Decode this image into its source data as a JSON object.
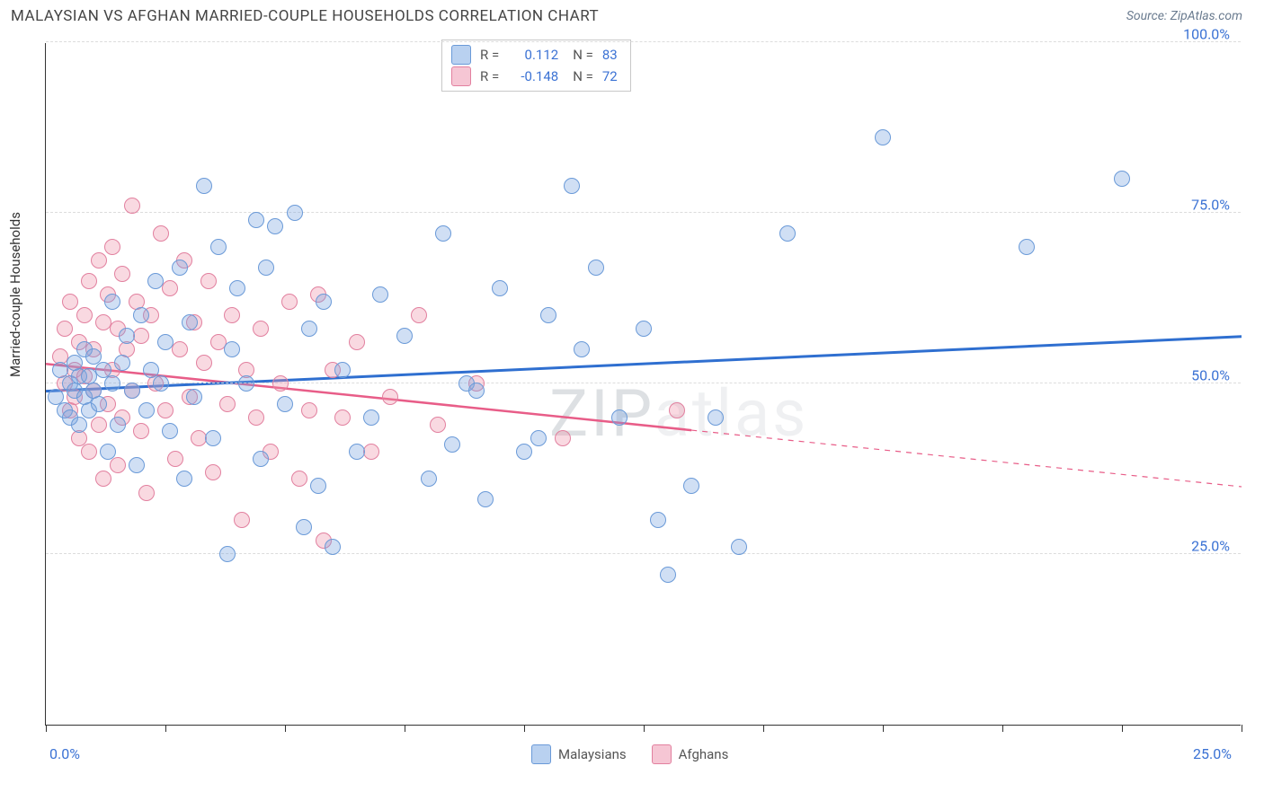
{
  "header": {
    "title": "MALAYSIAN VS AFGHAN MARRIED-COUPLE HOUSEHOLDS CORRELATION CHART",
    "source_prefix": "Source: ",
    "source_name": "ZipAtlas.com"
  },
  "chart": {
    "type": "scatter",
    "y_axis_label": "Married-couple Households",
    "background_color": "#ffffff",
    "grid_color": "#dcdcdc",
    "axis_color": "#333333",
    "xlim": [
      0,
      25
    ],
    "ylim": [
      0,
      100
    ],
    "x_ticks": [
      0,
      2.5,
      5,
      7.5,
      10,
      12.5,
      15,
      17.5,
      20,
      22.5,
      25
    ],
    "x_tick_labels": {
      "0": "0.0%",
      "25": "25.0%"
    },
    "y_gridlines": [
      25,
      50,
      75,
      100
    ],
    "y_tick_labels": {
      "25": "25.0%",
      "50": "50.0%",
      "75": "75.0%",
      "100": "100.0%"
    },
    "tick_label_color": "#3b72d4",
    "point_radius": 9,
    "point_stroke_width": 1.5,
    "watermark": {
      "dark": "ZIP",
      "light": "atlas",
      "fontsize": 72
    }
  },
  "series": {
    "malaysians": {
      "label": "Malaysians",
      "fill": "rgba(120,163,224,0.35)",
      "stroke": "#6a9ad8",
      "swatch_fill": "#b9d1f0",
      "swatch_stroke": "#6a9ad8",
      "trend_color": "#2f6fd0",
      "trend_width": 3,
      "R": "0.112",
      "N": "83",
      "trend": {
        "x1": 0,
        "y1": 49,
        "x2": 25,
        "y2": 57,
        "solid_to_x": 25
      },
      "points": [
        [
          0.2,
          48
        ],
        [
          0.3,
          52
        ],
        [
          0.4,
          46
        ],
        [
          0.5,
          45
        ],
        [
          0.5,
          50
        ],
        [
          0.6,
          53
        ],
        [
          0.6,
          49
        ],
        [
          0.7,
          51
        ],
        [
          0.7,
          44
        ],
        [
          0.8,
          55
        ],
        [
          0.8,
          48
        ],
        [
          0.9,
          46
        ],
        [
          0.9,
          51
        ],
        [
          1.0,
          49
        ],
        [
          1.0,
          54
        ],
        [
          1.1,
          47
        ],
        [
          1.2,
          52
        ],
        [
          1.3,
          40
        ],
        [
          1.4,
          50
        ],
        [
          1.4,
          62
        ],
        [
          1.5,
          44
        ],
        [
          1.6,
          53
        ],
        [
          1.7,
          57
        ],
        [
          1.8,
          49
        ],
        [
          1.9,
          38
        ],
        [
          2.0,
          60
        ],
        [
          2.1,
          46
        ],
        [
          2.2,
          52
        ],
        [
          2.3,
          65
        ],
        [
          2.4,
          50
        ],
        [
          2.5,
          56
        ],
        [
          2.6,
          43
        ],
        [
          2.8,
          67
        ],
        [
          2.9,
          36
        ],
        [
          3.0,
          59
        ],
        [
          3.1,
          48
        ],
        [
          3.3,
          79
        ],
        [
          3.5,
          42
        ],
        [
          3.6,
          70
        ],
        [
          3.8,
          25
        ],
        [
          3.9,
          55
        ],
        [
          4.0,
          64
        ],
        [
          4.2,
          50
        ],
        [
          4.4,
          74
        ],
        [
          4.5,
          39
        ],
        [
          4.6,
          67
        ],
        [
          4.8,
          73
        ],
        [
          5.0,
          47
        ],
        [
          5.2,
          75
        ],
        [
          5.4,
          29
        ],
        [
          5.5,
          58
        ],
        [
          5.7,
          35
        ],
        [
          5.8,
          62
        ],
        [
          6.0,
          26
        ],
        [
          6.2,
          52
        ],
        [
          6.5,
          40
        ],
        [
          6.8,
          45
        ],
        [
          7.0,
          63
        ],
        [
          7.5,
          57
        ],
        [
          8.0,
          36
        ],
        [
          8.3,
          72
        ],
        [
          8.5,
          41
        ],
        [
          8.8,
          50
        ],
        [
          9.0,
          49
        ],
        [
          9.2,
          33
        ],
        [
          9.5,
          64
        ],
        [
          10.0,
          40
        ],
        [
          10.3,
          42
        ],
        [
          10.5,
          60
        ],
        [
          11.0,
          79
        ],
        [
          11.2,
          55
        ],
        [
          11.5,
          67
        ],
        [
          12.0,
          45
        ],
        [
          12.5,
          58
        ],
        [
          12.8,
          30
        ],
        [
          13.0,
          22
        ],
        [
          13.5,
          35
        ],
        [
          14.0,
          45
        ],
        [
          14.5,
          26
        ],
        [
          15.5,
          72
        ],
        [
          17.5,
          86
        ],
        [
          20.5,
          70
        ],
        [
          22.5,
          80
        ]
      ]
    },
    "afghans": {
      "label": "Afghans",
      "fill": "rgba(238,145,170,0.35)",
      "stroke": "#e2809f",
      "swatch_fill": "#f6c6d4",
      "swatch_stroke": "#e2809f",
      "trend_color": "#e85d88",
      "trend_width": 2.5,
      "R": "-0.148",
      "N": "72",
      "trend": {
        "x1": 0,
        "y1": 53,
        "x2": 25,
        "y2": 35,
        "solid_to_x": 13.5
      },
      "points": [
        [
          0.3,
          54
        ],
        [
          0.4,
          50
        ],
        [
          0.4,
          58
        ],
        [
          0.5,
          46
        ],
        [
          0.5,
          62
        ],
        [
          0.6,
          52
        ],
        [
          0.6,
          48
        ],
        [
          0.7,
          56
        ],
        [
          0.7,
          42
        ],
        [
          0.8,
          60
        ],
        [
          0.8,
          51
        ],
        [
          0.9,
          65
        ],
        [
          0.9,
          40
        ],
        [
          1.0,
          55
        ],
        [
          1.0,
          49
        ],
        [
          1.1,
          68
        ],
        [
          1.1,
          44
        ],
        [
          1.2,
          59
        ],
        [
          1.2,
          36
        ],
        [
          1.3,
          63
        ],
        [
          1.3,
          47
        ],
        [
          1.4,
          70
        ],
        [
          1.4,
          52
        ],
        [
          1.5,
          58
        ],
        [
          1.5,
          38
        ],
        [
          1.6,
          66
        ],
        [
          1.6,
          45
        ],
        [
          1.7,
          55
        ],
        [
          1.8,
          76
        ],
        [
          1.8,
          49
        ],
        [
          1.9,
          62
        ],
        [
          2.0,
          43
        ],
        [
          2.0,
          57
        ],
        [
          2.1,
          34
        ],
        [
          2.2,
          60
        ],
        [
          2.3,
          50
        ],
        [
          2.4,
          72
        ],
        [
          2.5,
          46
        ],
        [
          2.6,
          64
        ],
        [
          2.7,
          39
        ],
        [
          2.8,
          55
        ],
        [
          2.9,
          68
        ],
        [
          3.0,
          48
        ],
        [
          3.1,
          59
        ],
        [
          3.2,
          42
        ],
        [
          3.3,
          53
        ],
        [
          3.4,
          65
        ],
        [
          3.5,
          37
        ],
        [
          3.6,
          56
        ],
        [
          3.8,
          47
        ],
        [
          3.9,
          60
        ],
        [
          4.1,
          30
        ],
        [
          4.2,
          52
        ],
        [
          4.4,
          45
        ],
        [
          4.5,
          58
        ],
        [
          4.7,
          40
        ],
        [
          4.9,
          50
        ],
        [
          5.1,
          62
        ],
        [
          5.3,
          36
        ],
        [
          5.5,
          46
        ],
        [
          5.7,
          63
        ],
        [
          5.8,
          27
        ],
        [
          6.0,
          52
        ],
        [
          6.2,
          45
        ],
        [
          6.5,
          56
        ],
        [
          6.8,
          40
        ],
        [
          7.2,
          48
        ],
        [
          7.8,
          60
        ],
        [
          8.2,
          44
        ],
        [
          9.0,
          50
        ],
        [
          10.8,
          42
        ],
        [
          13.2,
          46
        ]
      ]
    }
  },
  "stats_legend": {
    "r_label": "R =",
    "n_label": "N ="
  },
  "bottom_legend": {
    "items": [
      "malaysians",
      "afghans"
    ]
  }
}
